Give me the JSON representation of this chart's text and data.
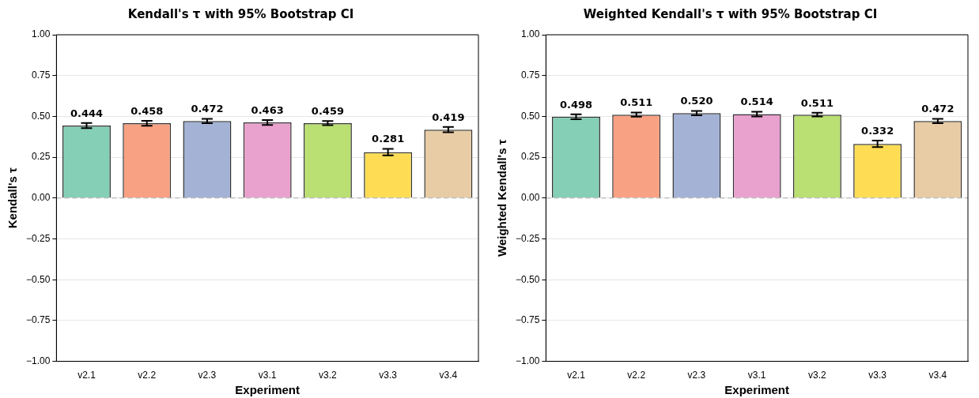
{
  "chart_data": [
    {
      "type": "bar",
      "title": "Kendall's τ with 95% Bootstrap CI",
      "xlabel": "Experiment",
      "ylabel": "Kendall's τ",
      "categories": [
        "v2.1",
        "v2.2",
        "v2.3",
        "v3.1",
        "v3.2",
        "v3.3",
        "v3.4"
      ],
      "values": [
        0.444,
        0.458,
        0.472,
        0.463,
        0.459,
        0.281,
        0.419
      ],
      "value_labels": [
        "0.444",
        "0.458",
        "0.472",
        "0.463",
        "0.459",
        "0.281",
        "0.419"
      ],
      "errors": [
        0.016,
        0.015,
        0.013,
        0.015,
        0.013,
        0.02,
        0.016
      ],
      "colors": [
        "#84cfb6",
        "#f9a283",
        "#a4b3d5",
        "#e9a1cd",
        "#badf73",
        "#fedd55",
        "#e8cca5"
      ],
      "ylim": [
        -1,
        1
      ],
      "yticks": [
        {
          "value": -1,
          "label": "−1.00"
        },
        {
          "value": -0.75,
          "label": "−0.75"
        },
        {
          "value": -0.5,
          "label": "−0.50"
        },
        {
          "value": -0.25,
          "label": "−0.25"
        },
        {
          "value": 0,
          "label": "0.00"
        },
        {
          "value": 0.25,
          "label": "0.25"
        },
        {
          "value": 0.5,
          "label": "0.50"
        },
        {
          "value": 0.75,
          "label": "0.75"
        },
        {
          "value": 1,
          "label": "1.00"
        }
      ],
      "grid": "y",
      "legend": false,
      "ref_lines": [
        {
          "axis": "y",
          "value": 0,
          "color": "#aaaaaa",
          "line_style": "dashed"
        }
      ]
    },
    {
      "type": "bar",
      "title": "Weighted Kendall's τ with 95% Bootstrap CI",
      "xlabel": "Experiment",
      "ylabel": "Weighted Kendall's τ",
      "categories": [
        "v2.1",
        "v2.2",
        "v2.3",
        "v3.1",
        "v3.2",
        "v3.3",
        "v3.4"
      ],
      "values": [
        0.498,
        0.511,
        0.52,
        0.514,
        0.511,
        0.332,
        0.472
      ],
      "value_labels": [
        "0.498",
        "0.511",
        "0.520",
        "0.514",
        "0.511",
        "0.332",
        "0.472"
      ],
      "errors": [
        0.015,
        0.013,
        0.013,
        0.014,
        0.012,
        0.02,
        0.013
      ],
      "colors": [
        "#84cfb6",
        "#f9a283",
        "#a4b3d5",
        "#e9a1cd",
        "#badf73",
        "#fedd55",
        "#e8cca5"
      ],
      "ylim": [
        -1,
        1
      ],
      "yticks": [
        {
          "value": -1,
          "label": "−1.00"
        },
        {
          "value": -0.75,
          "label": "−0.75"
        },
        {
          "value": -0.5,
          "label": "−0.50"
        },
        {
          "value": -0.25,
          "label": "−0.25"
        },
        {
          "value": 0,
          "label": "0.00"
        },
        {
          "value": 0.25,
          "label": "0.25"
        },
        {
          "value": 0.5,
          "label": "0.50"
        },
        {
          "value": 0.75,
          "label": "0.75"
        },
        {
          "value": 1,
          "label": "1.00"
        }
      ],
      "grid": "y",
      "legend": false,
      "ref_lines": [
        {
          "axis": "y",
          "value": 0,
          "color": "#aaaaaa",
          "line_style": "dashed"
        }
      ]
    }
  ]
}
